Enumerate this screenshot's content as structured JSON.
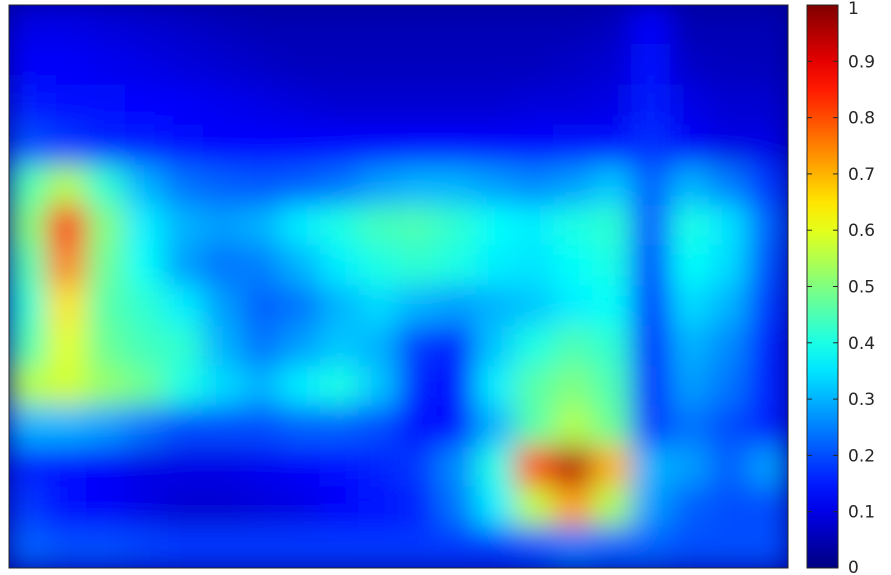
{
  "chart_data": {
    "type": "heatmap",
    "title": "",
    "xlabel": "",
    "ylabel": "",
    "colormap": "jet",
    "value_range": [
      0,
      1
    ],
    "colorbar": {
      "ticks": [
        0,
        0.1,
        0.2,
        0.3,
        0.4,
        0.5,
        0.6,
        0.7,
        0.8,
        0.9,
        1
      ],
      "tick_labels": [
        "0",
        "0.1",
        "0.2",
        "0.3",
        "0.4",
        "0.5",
        "0.6",
        "0.7",
        "0.8",
        "0.9",
        "1"
      ],
      "placement": "right"
    },
    "axes_ticks_visible": false,
    "grid": false,
    "grid_size": [
      20,
      14
    ],
    "values": [
      [
        0.1,
        0.1,
        0.09,
        0.08,
        0.07,
        0.06,
        0.05,
        0.05,
        0.05,
        0.05,
        0.05,
        0.05,
        0.05,
        0.05,
        0.05,
        0.06,
        0.12,
        0.05,
        0.05,
        0.05
      ],
      [
        0.12,
        0.12,
        0.11,
        0.1,
        0.09,
        0.08,
        0.07,
        0.06,
        0.06,
        0.06,
        0.06,
        0.06,
        0.06,
        0.06,
        0.07,
        0.08,
        0.14,
        0.07,
        0.06,
        0.06
      ],
      [
        0.15,
        0.14,
        0.14,
        0.13,
        0.12,
        0.11,
        0.1,
        0.09,
        0.08,
        0.08,
        0.08,
        0.08,
        0.08,
        0.09,
        0.09,
        0.1,
        0.15,
        0.1,
        0.08,
        0.08
      ],
      [
        0.2,
        0.18,
        0.16,
        0.15,
        0.14,
        0.13,
        0.13,
        0.13,
        0.13,
        0.13,
        0.13,
        0.13,
        0.13,
        0.13,
        0.14,
        0.14,
        0.17,
        0.12,
        0.1,
        0.1
      ],
      [
        0.45,
        0.55,
        0.42,
        0.3,
        0.24,
        0.22,
        0.21,
        0.22,
        0.24,
        0.28,
        0.3,
        0.3,
        0.28,
        0.26,
        0.28,
        0.32,
        0.22,
        0.3,
        0.25,
        0.18
      ],
      [
        0.5,
        0.85,
        0.5,
        0.36,
        0.3,
        0.28,
        0.3,
        0.36,
        0.4,
        0.44,
        0.45,
        0.42,
        0.38,
        0.36,
        0.4,
        0.42,
        0.2,
        0.4,
        0.35,
        0.22
      ],
      [
        0.45,
        0.75,
        0.48,
        0.38,
        0.28,
        0.24,
        0.25,
        0.3,
        0.36,
        0.4,
        0.42,
        0.4,
        0.36,
        0.35,
        0.38,
        0.4,
        0.18,
        0.38,
        0.34,
        0.2
      ],
      [
        0.42,
        0.65,
        0.46,
        0.42,
        0.36,
        0.28,
        0.22,
        0.24,
        0.3,
        0.34,
        0.3,
        0.28,
        0.3,
        0.32,
        0.36,
        0.38,
        0.16,
        0.34,
        0.3,
        0.18
      ],
      [
        0.45,
        0.6,
        0.48,
        0.44,
        0.42,
        0.3,
        0.24,
        0.28,
        0.32,
        0.3,
        0.18,
        0.16,
        0.32,
        0.4,
        0.45,
        0.42,
        0.14,
        0.3,
        0.26,
        0.16
      ],
      [
        0.55,
        0.58,
        0.52,
        0.48,
        0.4,
        0.34,
        0.3,
        0.36,
        0.4,
        0.32,
        0.16,
        0.14,
        0.36,
        0.46,
        0.5,
        0.45,
        0.15,
        0.28,
        0.24,
        0.16
      ],
      [
        0.3,
        0.3,
        0.28,
        0.24,
        0.2,
        0.2,
        0.2,
        0.22,
        0.22,
        0.2,
        0.14,
        0.14,
        0.3,
        0.46,
        0.55,
        0.48,
        0.18,
        0.24,
        0.2,
        0.16
      ],
      [
        0.16,
        0.14,
        0.12,
        0.1,
        0.1,
        0.1,
        0.11,
        0.12,
        0.14,
        0.16,
        0.18,
        0.26,
        0.4,
        0.8,
        0.95,
        0.7,
        0.3,
        0.28,
        0.22,
        0.28
      ],
      [
        0.18,
        0.14,
        0.12,
        0.1,
        0.08,
        0.08,
        0.09,
        0.1,
        0.12,
        0.14,
        0.16,
        0.24,
        0.36,
        0.56,
        0.72,
        0.54,
        0.28,
        0.22,
        0.2,
        0.2
      ],
      [
        0.22,
        0.2,
        0.2,
        0.19,
        0.18,
        0.18,
        0.18,
        0.18,
        0.18,
        0.18,
        0.18,
        0.18,
        0.18,
        0.2,
        0.24,
        0.22,
        0.22,
        0.2,
        0.2,
        0.2
      ]
    ]
  }
}
